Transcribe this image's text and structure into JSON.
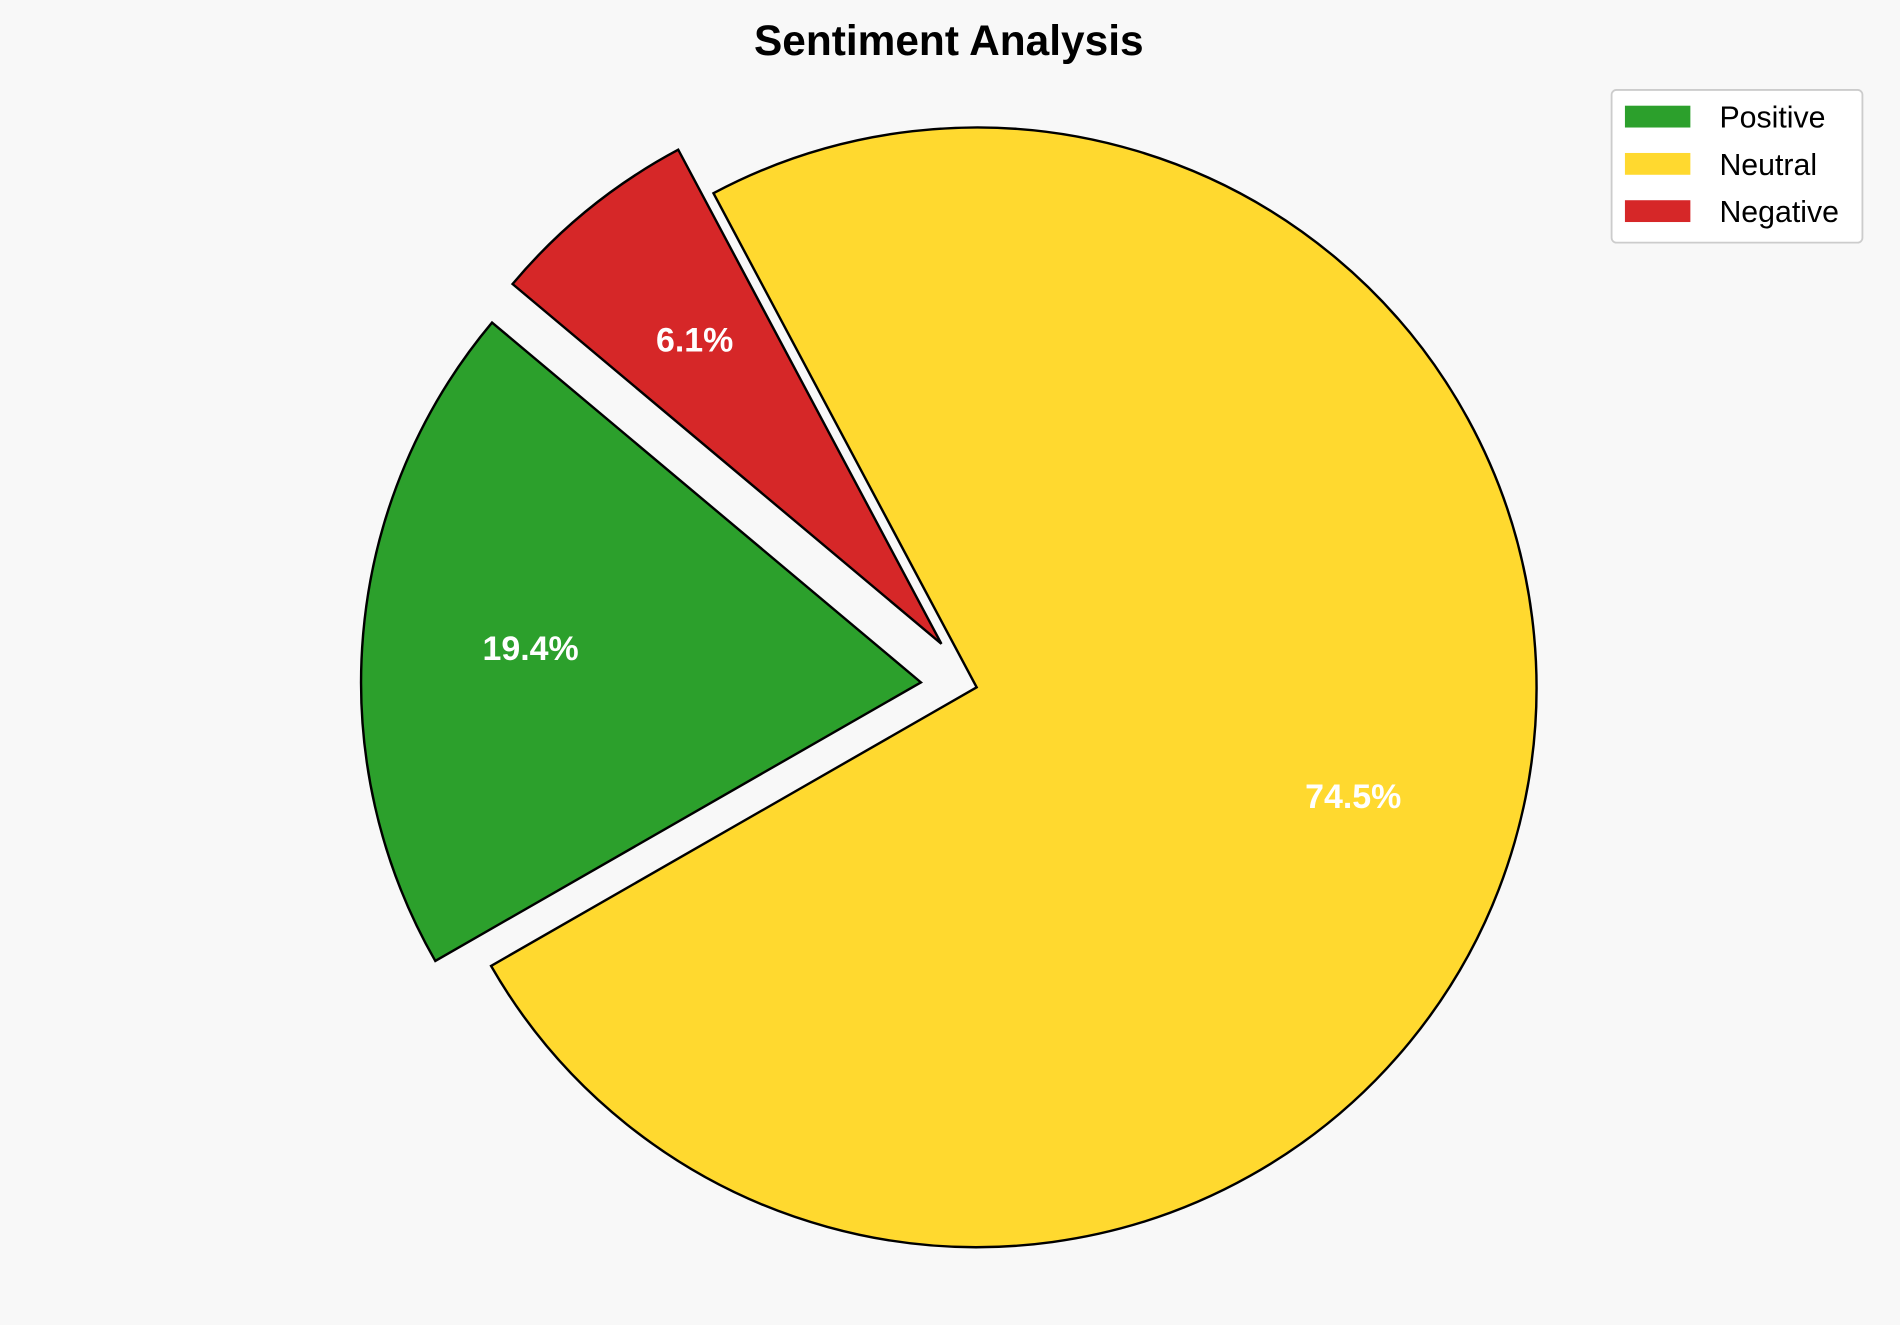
{
  "chart_data": {
    "type": "pie",
    "title": "Sentiment Analysis",
    "categories": [
      "Positive",
      "Neutral",
      "Negative"
    ],
    "values": [
      19.4,
      74.5,
      6.1
    ],
    "labels": [
      "19.4%",
      "74.5%",
      "6.1%"
    ],
    "colors": [
      "#2ca02c",
      "#ffd92f",
      "#d62728"
    ],
    "explode": [
      0.1,
      0,
      0.1
    ],
    "start_angle_deg": 140,
    "direction": "counterclockwise",
    "edge_color": "#000000",
    "label_color": "#ffffff",
    "legend": {
      "placement": "top-right",
      "entries": [
        "Positive",
        "Neutral",
        "Negative"
      ]
    },
    "background": "#f8f8f8"
  }
}
